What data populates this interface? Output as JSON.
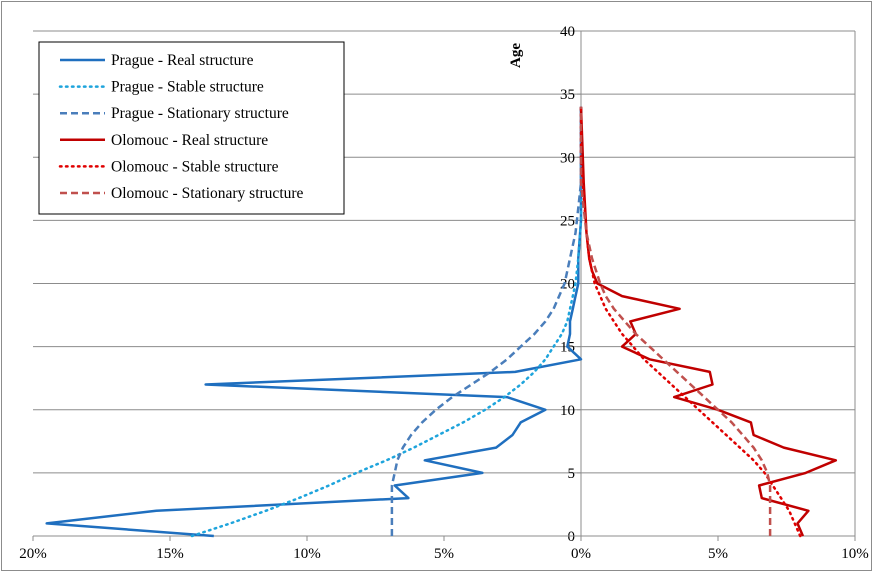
{
  "chart_data": {
    "type": "line",
    "title": "",
    "xlabel": "",
    "ylabel": "Age",
    "xlim": [
      -0.2,
      0.1
    ],
    "ylim": [
      0,
      40
    ],
    "x_ticks": [
      -0.2,
      -0.15,
      -0.1,
      -0.05,
      0,
      0.05,
      0.1
    ],
    "x_tick_labels": [
      "20%",
      "15%",
      "10%",
      "5%",
      "0%",
      "5%",
      "10%"
    ],
    "y_ticks": [
      0,
      5,
      10,
      15,
      20,
      25,
      30,
      35,
      40
    ],
    "y_tick_labels": [
      "0",
      "5",
      "10",
      "15",
      "20",
      "25",
      "30",
      "35",
      "40"
    ],
    "grid": true,
    "legend_position": "top-left",
    "series": [
      {
        "name": "Prague - Real structure",
        "color": "#1f6fbf",
        "style": "solid",
        "points": [
          [
            -0.134,
            0
          ],
          [
            -0.195,
            1
          ],
          [
            -0.155,
            2
          ],
          [
            -0.063,
            3
          ],
          [
            -0.068,
            4
          ],
          [
            -0.036,
            5
          ],
          [
            -0.057,
            6
          ],
          [
            -0.031,
            7
          ],
          [
            -0.025,
            8
          ],
          [
            -0.022,
            9
          ],
          [
            -0.013,
            10
          ],
          [
            -0.027,
            11
          ],
          [
            -0.137,
            12
          ],
          [
            -0.024,
            13
          ],
          [
            0.0,
            14
          ],
          [
            -0.005,
            15
          ],
          [
            -0.004,
            16
          ],
          [
            -0.004,
            17
          ],
          [
            -0.003,
            18
          ],
          [
            -0.002,
            19
          ],
          [
            -0.001,
            20
          ],
          [
            -0.001,
            22
          ],
          [
            0.0,
            25
          ],
          [
            0.0,
            30
          ],
          [
            0.0,
            34
          ]
        ]
      },
      {
        "name": "Prague - Stable structure",
        "color": "#1ea4dc",
        "style": "dotted",
        "points": [
          [
            -0.142,
            0
          ],
          [
            -0.128,
            1
          ],
          [
            -0.115,
            2
          ],
          [
            -0.103,
            3
          ],
          [
            -0.092,
            4
          ],
          [
            -0.082,
            5
          ],
          [
            -0.071,
            6
          ],
          [
            -0.061,
            7
          ],
          [
            -0.052,
            8
          ],
          [
            -0.043,
            9
          ],
          [
            -0.035,
            10
          ],
          [
            -0.028,
            11
          ],
          [
            -0.022,
            12
          ],
          [
            -0.017,
            13
          ],
          [
            -0.013,
            14
          ],
          [
            -0.01,
            15
          ],
          [
            -0.007,
            16
          ],
          [
            -0.005,
            17
          ],
          [
            -0.004,
            18
          ],
          [
            -0.003,
            19
          ],
          [
            -0.002,
            20
          ],
          [
            -0.001,
            22
          ],
          [
            0.0,
            25
          ],
          [
            0.0,
            30
          ],
          [
            0.0,
            34
          ]
        ]
      },
      {
        "name": "Prague - Stationary structure",
        "color": "#4a7ebb",
        "style": "dashed",
        "points": [
          [
            -0.069,
            0
          ],
          [
            -0.069,
            2
          ],
          [
            -0.069,
            4
          ],
          [
            -0.068,
            5
          ],
          [
            -0.067,
            6
          ],
          [
            -0.065,
            7
          ],
          [
            -0.062,
            8
          ],
          [
            -0.058,
            9
          ],
          [
            -0.053,
            10
          ],
          [
            -0.047,
            11
          ],
          [
            -0.04,
            12
          ],
          [
            -0.033,
            13
          ],
          [
            -0.027,
            14
          ],
          [
            -0.022,
            15
          ],
          [
            -0.017,
            16
          ],
          [
            -0.013,
            17
          ],
          [
            -0.01,
            18
          ],
          [
            -0.008,
            19
          ],
          [
            -0.006,
            20
          ],
          [
            -0.004,
            22
          ],
          [
            -0.002,
            24
          ],
          [
            -0.001,
            26
          ],
          [
            0.0,
            28
          ],
          [
            0.0,
            30
          ],
          [
            0.0,
            34
          ]
        ]
      },
      {
        "name": "Olomouc - Real structure",
        "color": "#c00000",
        "style": "solid",
        "points": [
          [
            0.081,
            0
          ],
          [
            0.079,
            1
          ],
          [
            0.083,
            2
          ],
          [
            0.066,
            3
          ],
          [
            0.065,
            4
          ],
          [
            0.082,
            5
          ],
          [
            0.093,
            6
          ],
          [
            0.074,
            7
          ],
          [
            0.063,
            8
          ],
          [
            0.062,
            9
          ],
          [
            0.05,
            10
          ],
          [
            0.034,
            11
          ],
          [
            0.048,
            12
          ],
          [
            0.047,
            13
          ],
          [
            0.025,
            14
          ],
          [
            0.015,
            15
          ],
          [
            0.02,
            16
          ],
          [
            0.018,
            17
          ],
          [
            0.036,
            18
          ],
          [
            0.015,
            19
          ],
          [
            0.006,
            20
          ],
          [
            0.004,
            21
          ],
          [
            0.003,
            22
          ],
          [
            0.002,
            24
          ],
          [
            0.001,
            28
          ],
          [
            0.0,
            34
          ]
        ]
      },
      {
        "name": "Olomouc - Stable structure",
        "color": "#e00000",
        "style": "dotted",
        "points": [
          [
            0.08,
            0
          ],
          [
            0.078,
            1
          ],
          [
            0.076,
            2
          ],
          [
            0.073,
            3
          ],
          [
            0.07,
            4
          ],
          [
            0.067,
            5
          ],
          [
            0.063,
            6
          ],
          [
            0.058,
            7
          ],
          [
            0.053,
            8
          ],
          [
            0.048,
            9
          ],
          [
            0.043,
            10
          ],
          [
            0.038,
            11
          ],
          [
            0.033,
            12
          ],
          [
            0.028,
            13
          ],
          [
            0.023,
            14
          ],
          [
            0.019,
            15
          ],
          [
            0.015,
            16
          ],
          [
            0.012,
            17
          ],
          [
            0.009,
            18
          ],
          [
            0.007,
            19
          ],
          [
            0.005,
            20
          ],
          [
            0.003,
            22
          ],
          [
            0.002,
            24
          ],
          [
            0.001,
            27
          ],
          [
            0.0,
            30
          ],
          [
            0.0,
            34
          ]
        ]
      },
      {
        "name": "Olomouc - Stationary structure",
        "color": "#c0504d",
        "style": "dashed",
        "points": [
          [
            0.069,
            0
          ],
          [
            0.069,
            2
          ],
          [
            0.069,
            4
          ],
          [
            0.068,
            5
          ],
          [
            0.066,
            6
          ],
          [
            0.063,
            7
          ],
          [
            0.059,
            8
          ],
          [
            0.055,
            9
          ],
          [
            0.05,
            10
          ],
          [
            0.045,
            11
          ],
          [
            0.04,
            12
          ],
          [
            0.035,
            13
          ],
          [
            0.03,
            14
          ],
          [
            0.025,
            15
          ],
          [
            0.02,
            16
          ],
          [
            0.016,
            17
          ],
          [
            0.012,
            18
          ],
          [
            0.009,
            19
          ],
          [
            0.007,
            20
          ],
          [
            0.004,
            22
          ],
          [
            0.002,
            24
          ],
          [
            0.001,
            26
          ],
          [
            0.0,
            28
          ],
          [
            0.0,
            34
          ]
        ]
      }
    ]
  }
}
